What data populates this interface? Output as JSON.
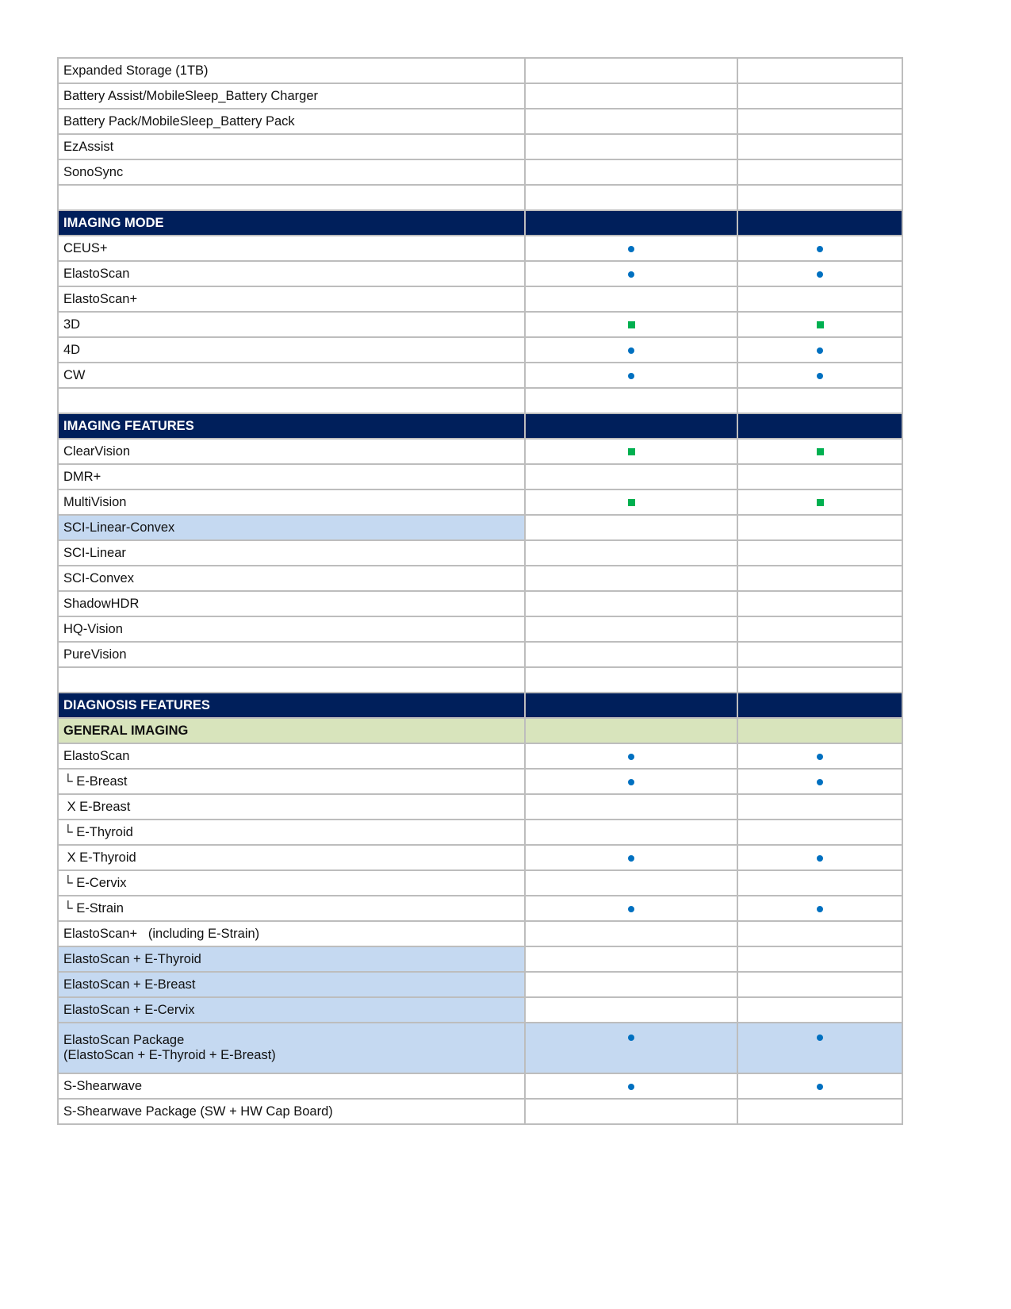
{
  "colors": {
    "header": "#001f5b",
    "subheader": "#d8e4bc",
    "highlight": "#c5d9f1",
    "dot": "#0070c0",
    "square": "#00b050"
  },
  "rows": [
    {
      "label": "Expanded Storage (1TB)",
      "type": "row",
      "marks": [
        "",
        ""
      ]
    },
    {
      "label": "Battery Assist/MobileSleep_Battery Charger",
      "type": "row",
      "marks": [
        "",
        ""
      ]
    },
    {
      "label": "Battery Pack/MobileSleep_Battery Pack",
      "type": "row",
      "marks": [
        "",
        ""
      ]
    },
    {
      "label": "EzAssist",
      "type": "row",
      "marks": [
        "",
        ""
      ]
    },
    {
      "label": "SonoSync",
      "type": "row",
      "marks": [
        "",
        ""
      ]
    },
    {
      "label": "",
      "type": "row",
      "marks": [
        "",
        ""
      ]
    },
    {
      "label": "IMAGING MODE",
      "type": "header",
      "marks": [
        "",
        ""
      ]
    },
    {
      "label": "CEUS+",
      "type": "row",
      "marks": [
        "dot",
        "dot"
      ]
    },
    {
      "label": "ElastoScan",
      "type": "row",
      "marks": [
        "dot",
        "dot"
      ]
    },
    {
      "label": "ElastoScan+",
      "type": "row",
      "marks": [
        "",
        ""
      ]
    },
    {
      "label": "3D",
      "type": "row",
      "marks": [
        "square",
        "square"
      ]
    },
    {
      "label": "4D",
      "type": "row",
      "marks": [
        "dot",
        "dot"
      ]
    },
    {
      "label": "CW",
      "type": "row",
      "marks": [
        "dot",
        "dot"
      ]
    },
    {
      "label": "",
      "type": "row",
      "marks": [
        "",
        ""
      ]
    },
    {
      "label": "IMAGING FEATURES",
      "type": "header",
      "marks": [
        "",
        ""
      ]
    },
    {
      "label": "ClearVision",
      "type": "row",
      "marks": [
        "square",
        "square"
      ]
    },
    {
      "label": "DMR+",
      "type": "row",
      "marks": [
        "",
        ""
      ]
    },
    {
      "label": "MultiVision",
      "type": "row",
      "marks": [
        "square",
        "square"
      ]
    },
    {
      "label": "SCI-Linear-Convex",
      "type": "hl",
      "marks": [
        "",
        ""
      ]
    },
    {
      "label": "SCI-Linear",
      "type": "row",
      "marks": [
        "",
        ""
      ]
    },
    {
      "label": "SCI-Convex",
      "type": "row",
      "marks": [
        "",
        ""
      ]
    },
    {
      "label": "ShadowHDR",
      "type": "row",
      "marks": [
        "",
        ""
      ]
    },
    {
      "label": "HQ-Vision",
      "type": "row",
      "marks": [
        "",
        ""
      ]
    },
    {
      "label": "PureVision",
      "type": "row",
      "marks": [
        "",
        ""
      ]
    },
    {
      "label": "",
      "type": "row",
      "marks": [
        "",
        ""
      ]
    },
    {
      "label": "DIAGNOSIS FEATURES",
      "type": "header",
      "marks": [
        "",
        ""
      ]
    },
    {
      "label": "GENERAL IMAGING",
      "type": "sub",
      "marks": [
        "",
        ""
      ]
    },
    {
      "label": "ElastoScan",
      "type": "row",
      "marks": [
        "dot",
        "dot"
      ]
    },
    {
      "label": "└ E-Breast",
      "type": "row",
      "marks": [
        "dot",
        "dot"
      ]
    },
    {
      "label": " X E-Breast",
      "type": "row",
      "marks": [
        "",
        ""
      ]
    },
    {
      "label": "└ E-Thyroid",
      "type": "row",
      "marks": [
        "",
        ""
      ]
    },
    {
      "label": " X E-Thyroid",
      "type": "row",
      "marks": [
        "dot",
        "dot"
      ]
    },
    {
      "label": "└ E-Cervix",
      "type": "row",
      "marks": [
        "",
        ""
      ]
    },
    {
      "label": "└ E-Strain",
      "type": "row",
      "marks": [
        "dot",
        "dot"
      ]
    },
    {
      "label": "ElastoScan+   (including E-Strain)",
      "type": "row",
      "marks": [
        "",
        ""
      ]
    },
    {
      "label": "ElastoScan + E-Thyroid",
      "type": "hl",
      "marks": [
        "",
        ""
      ]
    },
    {
      "label": "ElastoScan + E-Breast",
      "type": "hl",
      "marks": [
        "",
        ""
      ]
    },
    {
      "label": "ElastoScan + E-Cervix",
      "type": "hl",
      "marks": [
        "",
        ""
      ]
    },
    {
      "label": "ElastoScan Package",
      "label2": "(ElastoScan + E-Thyroid + E-Breast)",
      "type": "hlall",
      "marks": [
        "dot",
        "dot"
      ]
    },
    {
      "label": "S-Shearwave",
      "type": "row",
      "marks": [
        "dot",
        "dot"
      ]
    },
    {
      "label": "S-Shearwave Package (SW + HW Cap Board)",
      "type": "row",
      "marks": [
        "",
        ""
      ]
    }
  ]
}
